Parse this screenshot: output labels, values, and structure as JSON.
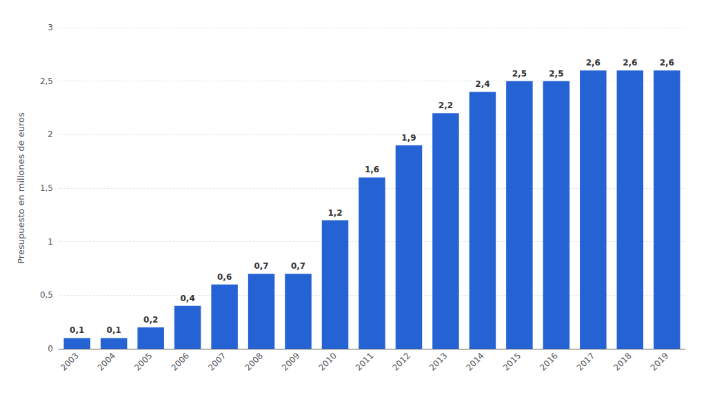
{
  "chart_data": {
    "type": "bar",
    "categories": [
      "2003",
      "2004",
      "2005",
      "2006",
      "2007",
      "2008",
      "2009",
      "2010",
      "2011",
      "2012",
      "2013",
      "2014",
      "2015",
      "2016",
      "2017",
      "2018",
      "2019"
    ],
    "values": [
      0.1,
      0.1,
      0.2,
      0.4,
      0.6,
      0.7,
      0.7,
      1.2,
      1.6,
      1.9,
      2.2,
      2.4,
      2.5,
      2.5,
      2.6,
      2.6,
      2.6
    ],
    "value_labels": [
      "0,1",
      "0,1",
      "0,2",
      "0,4",
      "0,6",
      "0,7",
      "0,7",
      "1,2",
      "1,6",
      "1,9",
      "2,2",
      "2,4",
      "2,5",
      "2,5",
      "2,6",
      "2,6",
      "2,6"
    ],
    "color": "#2563d4",
    "ylabel": "Presupuesto en millones de euros",
    "ylim": [
      0,
      3.0
    ],
    "yticks": [
      0,
      {
        "value": 0.5,
        "label": "0,5"
      },
      1,
      {
        "value": 1.5,
        "label": "1,5"
      },
      2,
      {
        "value": 2.5,
        "label": "2,5"
      },
      3
    ],
    "grid": true,
    "data_labels": true
  }
}
